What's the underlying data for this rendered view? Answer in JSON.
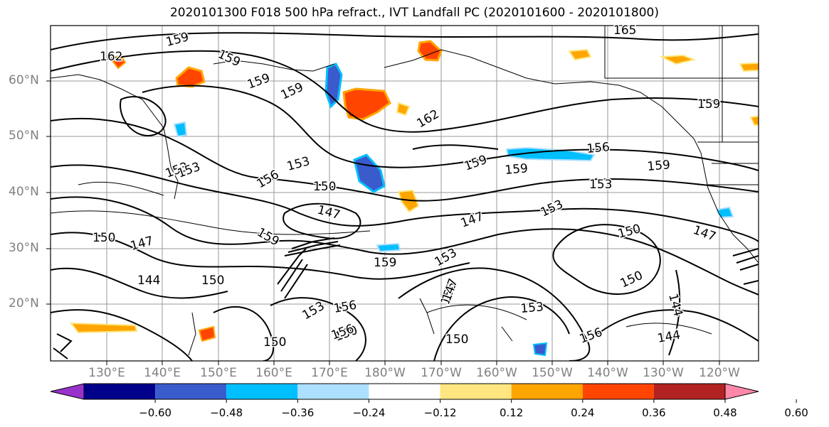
{
  "title": "2020101300 F018 500 hPa refract., IVT Landfall PC (2020101600 - 2020101800)",
  "lat_labels": [
    "60°N",
    "50°N",
    "40°N",
    "30°N",
    "20°N"
  ],
  "lon_labels": [
    "130°E",
    "140°E",
    "150°E",
    "160°E",
    "170°E",
    "180°W",
    "170°W",
    "160°W",
    "150°W",
    "140°W",
    "130°W",
    "120°W"
  ],
  "colorbar": {
    "colors": [
      "#9932CC",
      "#00008B",
      "#3A5BCC",
      "#00BFFF",
      "#ADDFFF",
      "#FFFFFF",
      "#FFE680",
      "#FFA500",
      "#FF4500",
      "#B22222",
      "#FF88AA"
    ],
    "labels": [
      "-0.60",
      "-0.48",
      "-0.36",
      "-0.24",
      "-0.12",
      "0.12",
      "0.24",
      "0.36",
      "0.48",
      "0.60"
    ]
  },
  "contour_labels": [
    "159",
    "162",
    "159",
    "159",
    "162",
    "159",
    "153",
    "153",
    "150",
    "147",
    "156",
    "153",
    "150",
    "159",
    "147",
    "144",
    "150",
    "159",
    "153",
    "153",
    "156",
    "150",
    "147",
    "153",
    "156",
    "159",
    "159",
    "159",
    "156",
    "153",
    "150",
    "150",
    "147",
    "144",
    "144",
    "153",
    "150",
    "156",
    "150",
    "165",
    "159",
    "147",
    "156"
  ]
}
